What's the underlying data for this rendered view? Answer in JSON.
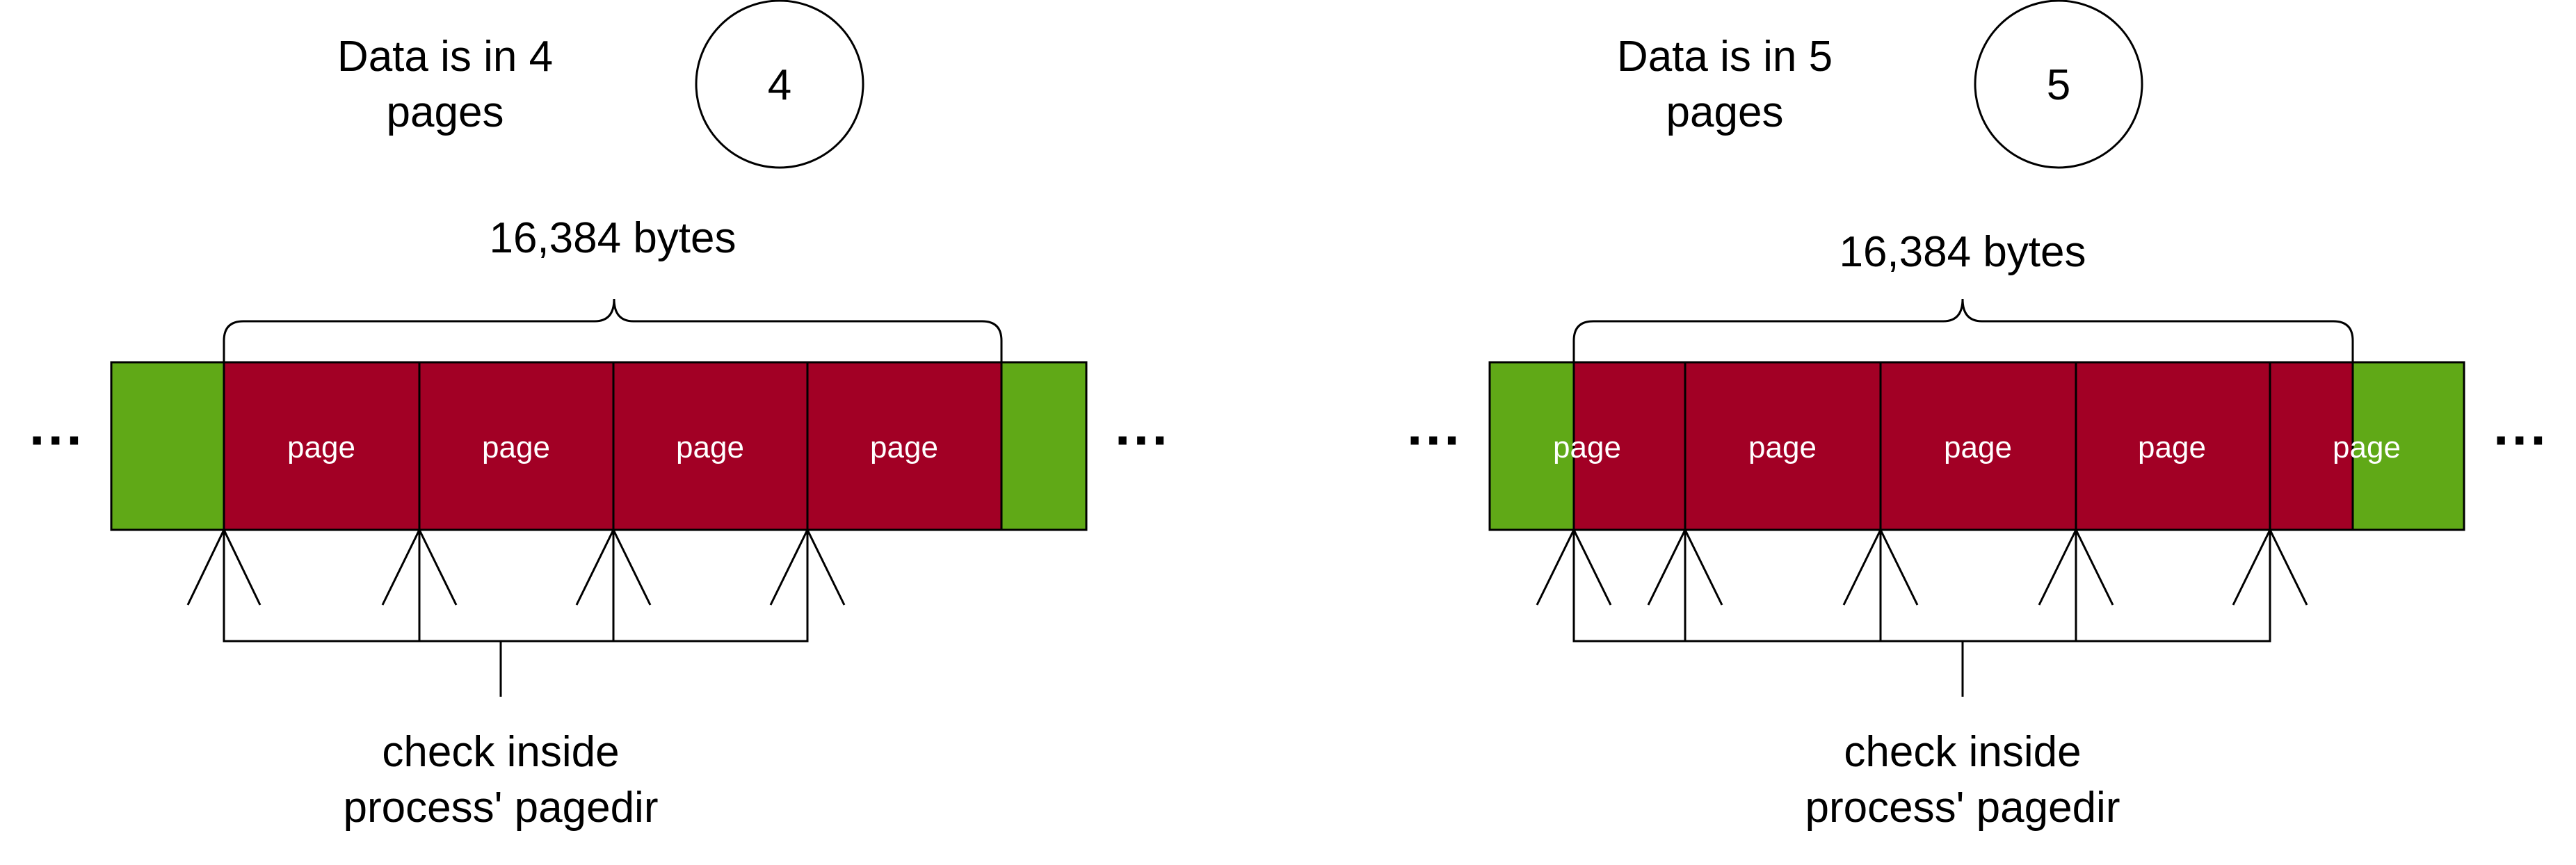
{
  "colors": {
    "green": "#60a917",
    "red": "#a20025",
    "stroke": "#000000",
    "page_text": "#ffffff"
  },
  "diagrams": [
    {
      "circle_label": "4",
      "caption_line1": "Data is in 4",
      "caption_line2": "pages",
      "size_label": "16,384 bytes",
      "page_labels": [
        "page",
        "page",
        "page",
        "page"
      ],
      "ellipsis_left": "···",
      "ellipsis_right": "···",
      "check_line1": "check inside",
      "check_line2": "process' pagedir"
    },
    {
      "circle_label": "5",
      "caption_line1": "Data is in 5",
      "caption_line2": "pages",
      "size_label": "16,384 bytes",
      "page_labels": [
        "page",
        "page",
        "page",
        "page",
        "page"
      ],
      "ellipsis_left": "···",
      "ellipsis_right": "···",
      "check_line1": "check inside",
      "check_line2": "process' pagedir"
    }
  ]
}
